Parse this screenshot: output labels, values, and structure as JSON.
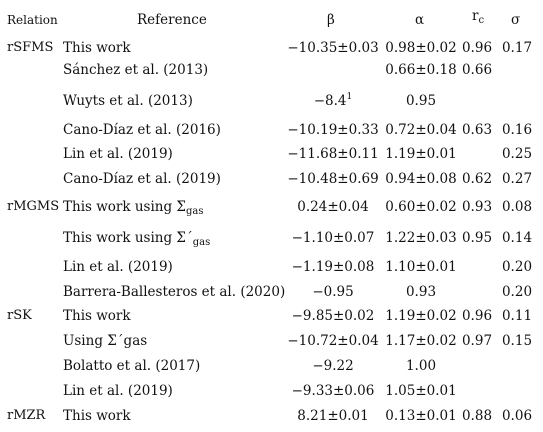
{
  "header": {
    "relation": "Relation",
    "reference": "Reference",
    "beta": "β",
    "alpha": "α",
    "rc_main": "r",
    "rc_sub": "c",
    "sigma": "σ"
  },
  "rows": [
    {
      "relation": "rSFMS",
      "reference": "This work",
      "beta": "−10.35±0.03",
      "alpha": "0.98±0.02",
      "rc": "0.96",
      "sigma": "0.17"
    },
    {
      "relation": "",
      "reference": "Sánchez et al. (2013)",
      "beta": "",
      "alpha": "0.66±0.18",
      "rc": "0.66",
      "sigma": ""
    },
    {
      "relation": "",
      "reference": "Wuyts et al. (2013)",
      "beta": "−8.4",
      "beta_sup": "1",
      "alpha": "0.95",
      "rc": "",
      "sigma": ""
    },
    {
      "relation": "",
      "reference": "Cano-Díaz et al. (2016)",
      "beta": "−10.19±0.33",
      "alpha": "0.72±0.04",
      "rc": "0.63",
      "sigma": "0.16"
    },
    {
      "relation": "",
      "reference": "Lin et al. (2019)",
      "beta": "−11.68±0.11",
      "alpha": "1.19±0.01",
      "rc": "",
      "sigma": "0.25"
    },
    {
      "relation": "",
      "reference": "Cano-Díaz et al. (2019)",
      "beta": "−10.48±0.69",
      "alpha": "0.94±0.08",
      "rc": "0.62",
      "sigma": "0.27"
    },
    {
      "relation": "rMGMS",
      "reference": "This work using Σ",
      "ref_sub": "gas",
      "beta": "0.24±0.04",
      "alpha": "0.60±0.02",
      "rc": "0.93",
      "sigma": "0.08"
    },
    {
      "relation": "",
      "reference": "This work using Σ´",
      "ref_sub": "gas",
      "beta": "−1.10±0.07",
      "alpha": "1.22±0.03",
      "rc": "0.95",
      "sigma": "0.14"
    },
    {
      "relation": "",
      "reference": "Lin et al. (2019)",
      "beta": "−1.19±0.08",
      "alpha": "1.10±0.01",
      "rc": "",
      "sigma": "0.20"
    },
    {
      "relation": "",
      "reference": "Barrera-Ballesteros et al. (2020)",
      "beta": "−0.95",
      "alpha": "0.93",
      "rc": "",
      "sigma": "0.20"
    },
    {
      "relation": "rSK",
      "reference": "This work",
      "beta": "−9.85±0.02",
      "alpha": "1.19±0.02",
      "rc": "0.96",
      "sigma": "0.11"
    },
    {
      "relation": "",
      "reference": "Using Σ´gas",
      "beta": "−10.72±0.04",
      "alpha": "1.17±0.02",
      "rc": "0.97",
      "sigma": "0.15"
    },
    {
      "relation": "",
      "reference": "Bolatto et al. (2017)",
      "beta": "−9.22",
      "alpha": "1.00",
      "rc": "",
      "sigma": ""
    },
    {
      "relation": "",
      "reference": "Lin et al. (2019)",
      "beta": "−9.33±0.06",
      "alpha": "1.05±0.01",
      "rc": "",
      "sigma": ""
    },
    {
      "relation": "rMZR",
      "reference": "This work",
      "beta": "8.21±0.01",
      "alpha": "0.13±0.01",
      "rc": "0.88",
      "sigma": "0.06"
    }
  ]
}
